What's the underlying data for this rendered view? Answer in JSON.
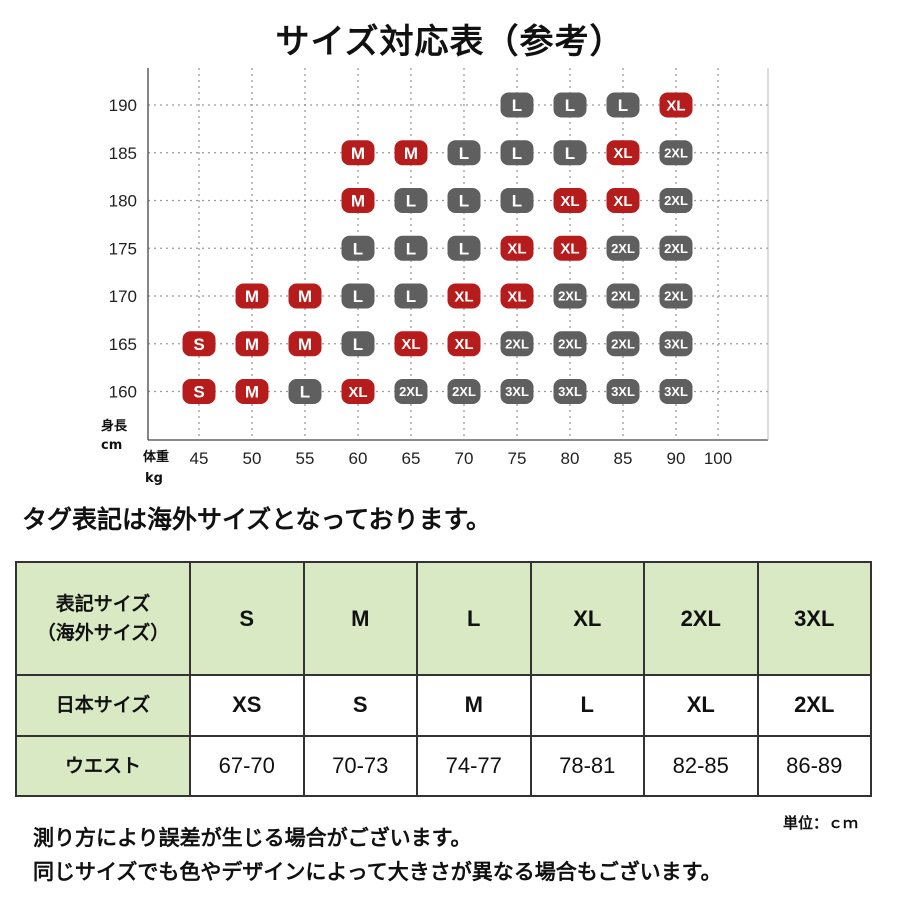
{
  "title": "サイズ対応表（参考）",
  "chart_data": {
    "type": "table",
    "y_label": [
      "身長",
      "cm"
    ],
    "x_label": [
      "体重",
      "kg"
    ],
    "heights": [
      190,
      185,
      180,
      175,
      170,
      165,
      160
    ],
    "weights": [
      45,
      50,
      55,
      60,
      65,
      70,
      75,
      80,
      85,
      90,
      100
    ],
    "cells": [
      {
        "h": 190,
        "w": 75,
        "size": "L"
      },
      {
        "h": 190,
        "w": 80,
        "size": "L"
      },
      {
        "h": 190,
        "w": 85,
        "size": "L"
      },
      {
        "h": 190,
        "w": 90,
        "size": "XL"
      },
      {
        "h": 185,
        "w": 60,
        "size": "M"
      },
      {
        "h": 185,
        "w": 65,
        "size": "M"
      },
      {
        "h": 185,
        "w": 70,
        "size": "L"
      },
      {
        "h": 185,
        "w": 75,
        "size": "L"
      },
      {
        "h": 185,
        "w": 80,
        "size": "L"
      },
      {
        "h": 185,
        "w": 85,
        "size": "XL"
      },
      {
        "h": 185,
        "w": 90,
        "size": "2XL"
      },
      {
        "h": 180,
        "w": 60,
        "size": "M"
      },
      {
        "h": 180,
        "w": 65,
        "size": "L"
      },
      {
        "h": 180,
        "w": 70,
        "size": "L"
      },
      {
        "h": 180,
        "w": 75,
        "size": "L"
      },
      {
        "h": 180,
        "w": 80,
        "size": "XL"
      },
      {
        "h": 180,
        "w": 85,
        "size": "XL"
      },
      {
        "h": 180,
        "w": 90,
        "size": "2XL"
      },
      {
        "h": 175,
        "w": 60,
        "size": "L"
      },
      {
        "h": 175,
        "w": 65,
        "size": "L"
      },
      {
        "h": 175,
        "w": 70,
        "size": "L"
      },
      {
        "h": 175,
        "w": 75,
        "size": "XL"
      },
      {
        "h": 175,
        "w": 80,
        "size": "XL"
      },
      {
        "h": 175,
        "w": 85,
        "size": "2XL"
      },
      {
        "h": 175,
        "w": 90,
        "size": "2XL"
      },
      {
        "h": 170,
        "w": 50,
        "size": "M"
      },
      {
        "h": 170,
        "w": 55,
        "size": "M"
      },
      {
        "h": 170,
        "w": 60,
        "size": "L"
      },
      {
        "h": 170,
        "w": 65,
        "size": "L"
      },
      {
        "h": 170,
        "w": 70,
        "size": "XL"
      },
      {
        "h": 170,
        "w": 75,
        "size": "XL"
      },
      {
        "h": 170,
        "w": 80,
        "size": "2XL"
      },
      {
        "h": 170,
        "w": 85,
        "size": "2XL"
      },
      {
        "h": 170,
        "w": 90,
        "size": "2XL"
      },
      {
        "h": 165,
        "w": 45,
        "size": "S"
      },
      {
        "h": 165,
        "w": 50,
        "size": "M"
      },
      {
        "h": 165,
        "w": 55,
        "size": "M"
      },
      {
        "h": 165,
        "w": 60,
        "size": "L"
      },
      {
        "h": 165,
        "w": 65,
        "size": "XL"
      },
      {
        "h": 165,
        "w": 70,
        "size": "XL"
      },
      {
        "h": 165,
        "w": 75,
        "size": "2XL"
      },
      {
        "h": 165,
        "w": 80,
        "size": "2XL"
      },
      {
        "h": 165,
        "w": 85,
        "size": "2XL"
      },
      {
        "h": 165,
        "w": 90,
        "size": "3XL"
      },
      {
        "h": 160,
        "w": 45,
        "size": "S"
      },
      {
        "h": 160,
        "w": 50,
        "size": "M"
      },
      {
        "h": 160,
        "w": 55,
        "size": "L"
      },
      {
        "h": 160,
        "w": 60,
        "size": "XL"
      },
      {
        "h": 160,
        "w": 65,
        "size": "2XL"
      },
      {
        "h": 160,
        "w": 70,
        "size": "2XL"
      },
      {
        "h": 160,
        "w": 75,
        "size": "3XL"
      },
      {
        "h": 160,
        "w": 80,
        "size": "3XL"
      },
      {
        "h": 160,
        "w": 85,
        "size": "3XL"
      },
      {
        "h": 160,
        "w": 90,
        "size": "3XL"
      }
    ],
    "colors": {
      "S": "#b71c1c",
      "M": "#b71c1c",
      "XL": "#b71c1c",
      "L": "#5f5f5f",
      "2XL": "#5f5f5f",
      "3XL": "#5f5f5f"
    },
    "grid": true
  },
  "note": "タグ表記は海外サイズとなっております。",
  "size_table": {
    "row_labels": [
      [
        "表記サイズ",
        "（海外サイズ）"
      ],
      [
        "日本サイズ"
      ],
      [
        "ウエスト"
      ]
    ],
    "overseas": [
      "S",
      "M",
      "L",
      "XL",
      "2XL",
      "3XL"
    ],
    "japan": [
      "XS",
      "S",
      "M",
      "L",
      "XL",
      "2XL"
    ],
    "waist": [
      "67-70",
      "70-73",
      "74-77",
      "78-81",
      "82-85",
      "86-89"
    ]
  },
  "unit": "単位：ｃｍ",
  "footnotes": [
    "測り方により誤差が生じる場合がございます。",
    "同じサイズでも色やデザインによって大きさが異なる場合もございます。"
  ]
}
